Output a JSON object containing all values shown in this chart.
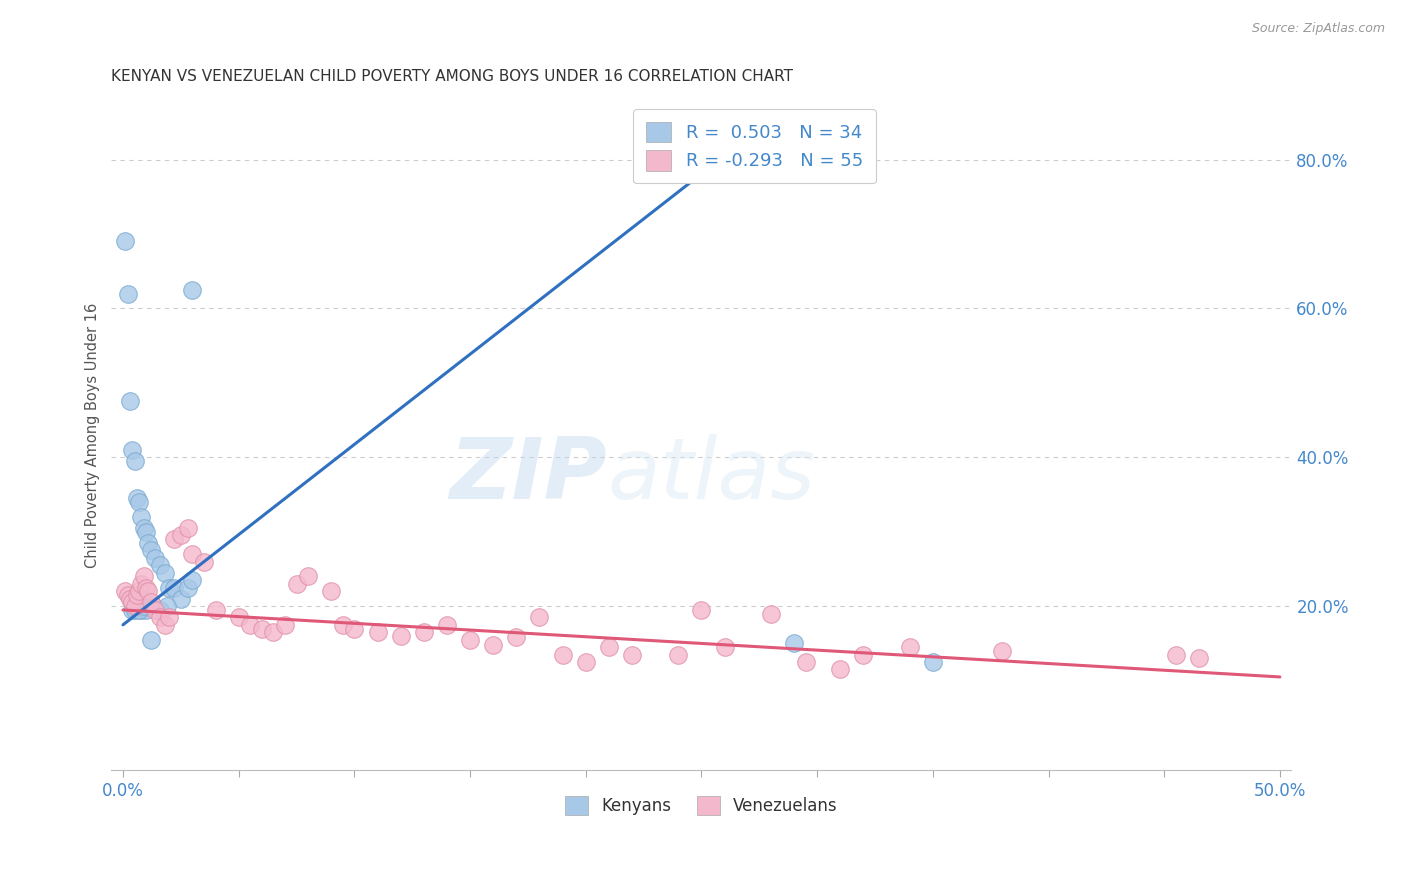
{
  "title": "KENYAN VS VENEZUELAN CHILD POVERTY AMONG BOYS UNDER 16 CORRELATION CHART",
  "source": "Source: ZipAtlas.com",
  "ylabel": "Child Poverty Among Boys Under 16",
  "xlim": [
    -0.005,
    0.505
  ],
  "ylim": [
    -0.02,
    0.88
  ],
  "xticks": [
    0.0,
    0.05,
    0.1,
    0.15,
    0.2,
    0.25,
    0.3,
    0.35,
    0.4,
    0.45,
    0.5
  ],
  "xtick_labels_show": [
    true,
    false,
    false,
    false,
    false,
    false,
    false,
    false,
    false,
    false,
    true
  ],
  "xtick_label_vals": [
    "0.0%",
    "",
    "",
    "",
    "",
    "",
    "",
    "",
    "",
    "",
    "50.0%"
  ],
  "yticks_right": [
    0.2,
    0.4,
    0.6,
    0.8
  ],
  "ytick_labels_right": [
    "20.0%",
    "40.0%",
    "60.0%",
    "80.0%"
  ],
  "kenyan_R": 0.503,
  "kenyan_N": 34,
  "venezuelan_R": -0.293,
  "venezuelan_N": 55,
  "kenyan_color": "#a8c8e8",
  "kenyan_edge_color": "#7aaad0",
  "kenyan_line_color": "#3070c0",
  "venezuelan_color": "#f4b8cc",
  "venezuelan_edge_color": "#e090a8",
  "venezuelan_line_color": "#e05878",
  "kenyan_x": [
    0.001,
    0.002,
    0.003,
    0.004,
    0.005,
    0.006,
    0.007,
    0.008,
    0.009,
    0.01,
    0.011,
    0.012,
    0.014,
    0.016,
    0.018,
    0.02,
    0.022,
    0.025,
    0.028,
    0.004,
    0.006,
    0.008,
    0.01,
    0.013,
    0.016,
    0.019,
    0.03,
    0.005,
    0.007,
    0.009,
    0.012,
    0.03,
    0.29,
    0.35
  ],
  "kenyan_y": [
    0.69,
    0.62,
    0.475,
    0.41,
    0.395,
    0.345,
    0.34,
    0.32,
    0.305,
    0.3,
    0.285,
    0.275,
    0.265,
    0.255,
    0.245,
    0.225,
    0.225,
    0.21,
    0.225,
    0.195,
    0.2,
    0.195,
    0.195,
    0.2,
    0.195,
    0.2,
    0.235,
    0.195,
    0.195,
    0.2,
    0.155,
    0.625,
    0.15,
    0.125
  ],
  "venezuelan_x": [
    0.001,
    0.002,
    0.003,
    0.004,
    0.005,
    0.006,
    0.007,
    0.008,
    0.009,
    0.01,
    0.011,
    0.012,
    0.014,
    0.016,
    0.018,
    0.02,
    0.022,
    0.025,
    0.028,
    0.03,
    0.035,
    0.04,
    0.05,
    0.055,
    0.06,
    0.065,
    0.07,
    0.075,
    0.08,
    0.09,
    0.095,
    0.1,
    0.11,
    0.12,
    0.13,
    0.14,
    0.15,
    0.16,
    0.17,
    0.18,
    0.19,
    0.2,
    0.21,
    0.22,
    0.24,
    0.25,
    0.26,
    0.28,
    0.295,
    0.31,
    0.32,
    0.34,
    0.38,
    0.455,
    0.465
  ],
  "venezuelan_y": [
    0.22,
    0.215,
    0.21,
    0.205,
    0.2,
    0.215,
    0.22,
    0.23,
    0.24,
    0.225,
    0.22,
    0.205,
    0.195,
    0.185,
    0.175,
    0.185,
    0.29,
    0.295,
    0.305,
    0.27,
    0.26,
    0.195,
    0.185,
    0.175,
    0.17,
    0.165,
    0.175,
    0.23,
    0.24,
    0.22,
    0.175,
    0.17,
    0.165,
    0.16,
    0.165,
    0.175,
    0.155,
    0.148,
    0.158,
    0.185,
    0.135,
    0.125,
    0.145,
    0.135,
    0.135,
    0.195,
    0.145,
    0.19,
    0.125,
    0.115,
    0.135,
    0.145,
    0.14,
    0.135,
    0.13
  ],
  "kenyan_trend_x": [
    0.0,
    0.26
  ],
  "kenyan_trend_y": [
    0.175,
    0.805
  ],
  "venezuelan_trend_x": [
    0.0,
    0.5
  ],
  "venezuelan_trend_y": [
    0.195,
    0.105
  ],
  "watermark_zip": "ZIP",
  "watermark_atlas": "atlas",
  "legend_items": [
    "Kenyans",
    "Venezuelans"
  ],
  "legend_text_blue": "R =  0.503   N = 34",
  "legend_text_pink": "R = -0.293   N = 55",
  "background_color": "#ffffff",
  "grid_color": "#cccccc",
  "title_color": "#333333",
  "tick_color": "#4488cc",
  "ylabel_color": "#555555",
  "source_color": "#999999"
}
